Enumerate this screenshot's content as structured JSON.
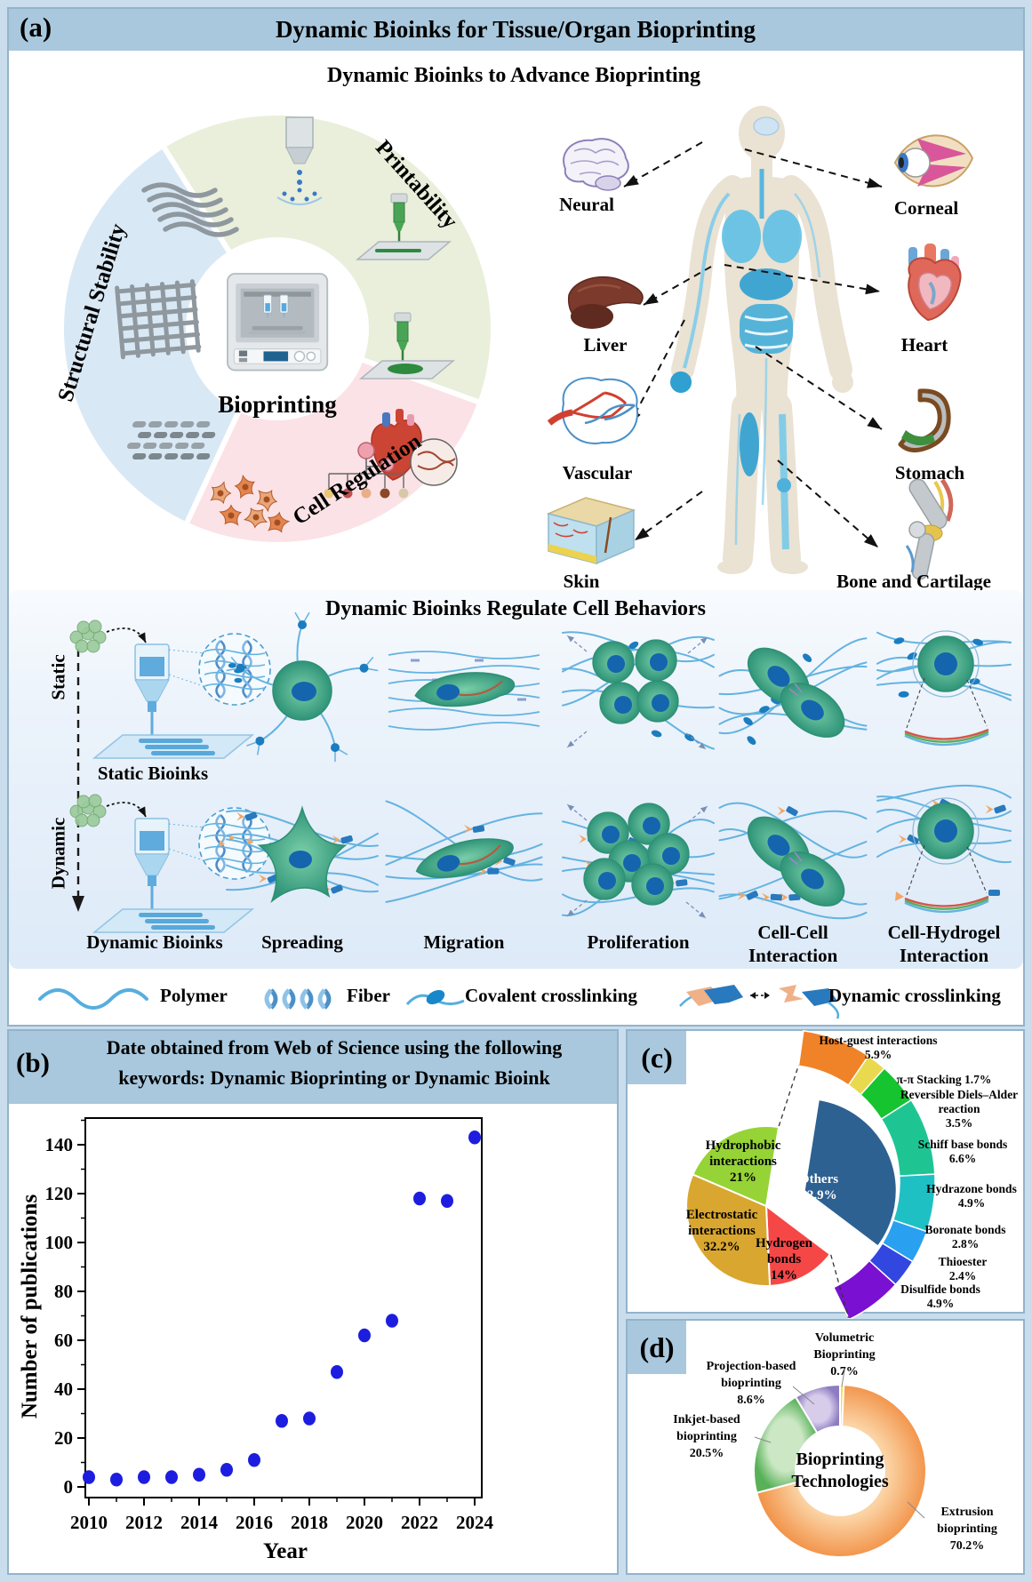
{
  "theme": {
    "page_bg": "#c9dded",
    "panel_bg": "#ffffff",
    "panel_border": "#92b4ca",
    "header_bg": "#a9c8dd",
    "band_bg": "#ddeaf8"
  },
  "panel_a": {
    "tag": "(a)",
    "title": "Dynamic Bioinks for Tissue/Organ Bioprinting",
    "subtitle": "Dynamic Bioinks to Advance Bioprinting",
    "wheel": {
      "center_label": "Bioprinting",
      "sectors": [
        {
          "label": "Printability",
          "color": "#e9efda"
        },
        {
          "label": "Structural Stability",
          "color": "#d9e8f5"
        },
        {
          "label": "Cell Regulation",
          "color": "#fbe2e6"
        }
      ]
    },
    "organs": [
      {
        "label": "Neural"
      },
      {
        "label": "Corneal"
      },
      {
        "label": "Liver"
      },
      {
        "label": "Heart"
      },
      {
        "label": "Vascular"
      },
      {
        "label": "Stomach"
      },
      {
        "label": "Skin"
      },
      {
        "label": "Bone and Cartilage"
      }
    ],
    "behaviors": {
      "title": "Dynamic Bioinks Regulate Cell Behaviors",
      "row_static": "Static",
      "row_dynamic": "Dynamic",
      "static_bioinks": "Static Bioinks",
      "dynamic_bioinks": "Dynamic Bioinks",
      "columns": [
        "Spreading",
        "Migration",
        "Proliferation",
        "Cell-Cell Interaction",
        "Cell-Hydrogel Interaction"
      ]
    },
    "legend": [
      {
        "label": "Polymer"
      },
      {
        "label": "Fiber"
      },
      {
        "label": "Covalent crosslinking"
      },
      {
        "label": "Dynamic crosslinking"
      }
    ]
  },
  "panel_b": {
    "tag": "(b)",
    "title_lines": [
      "Date obtained from Web of Science using the following",
      "keywords: Dynamic Bioprinting or Dynamic Bioink"
    ]
  },
  "panel_c": {
    "tag": "(c)"
  },
  "panel_d": {
    "tag": "(d)"
  },
  "chart_data": [
    {
      "id": "publications-by-year",
      "type": "scatter",
      "title": "Date obtained from Web of Science using the following keywords: Dynamic Bioprinting or Dynamic Bioink",
      "xlabel": "Year",
      "ylabel": "Number of publications",
      "x": [
        2010,
        2011,
        2012,
        2013,
        2014,
        2015,
        2016,
        2017,
        2018,
        2019,
        2020,
        2021,
        2022,
        2023,
        2024
      ],
      "y": [
        4,
        3,
        4,
        4,
        5,
        7,
        11,
        27,
        28,
        47,
        62,
        68,
        118,
        117,
        143
      ],
      "xticks": [
        2010,
        2012,
        2014,
        2016,
        2018,
        2020,
        2022,
        2024
      ],
      "yticks": [
        0,
        20,
        40,
        60,
        80,
        100,
        120,
        140
      ],
      "xlim": [
        2009.5,
        2024.6
      ],
      "ylim": [
        0,
        152
      ],
      "grid": false,
      "legend_position": "none",
      "point_color": "#1d1de0"
    },
    {
      "id": "dynamic-bond-types",
      "type": "pie",
      "style": "pie-with-others-breakout",
      "slices": [
        {
          "label": "Others",
          "pct": "32.9%",
          "value": 32.9,
          "color": "#2d6191"
        },
        {
          "label": "Hydrogen bonds",
          "pct": "14%",
          "value": 14,
          "color": "#f64747"
        },
        {
          "label": "Electrostatic interactions",
          "pct": "32.2%",
          "value": 32.2,
          "color": "#d9a62f"
        },
        {
          "label": "Hydrophobic interactions",
          "pct": "21%",
          "value": 21,
          "color": "#96d336"
        }
      ],
      "others_breakdown": [
        {
          "label": "Host-guest interactions",
          "pct": "5.9%",
          "value": 5.9,
          "color": "#f08228"
        },
        {
          "label": "π-π Stacking",
          "pct": "1.7%",
          "value": 1.7,
          "color": "#e9d94f"
        },
        {
          "label": "Reversible Diels–Alder reaction",
          "pct": "3.5%",
          "value": 3.5,
          "color": "#15c42f"
        },
        {
          "label": "Schiff base bonds",
          "pct": "6.6%",
          "value": 6.6,
          "color": "#1ec593"
        },
        {
          "label": "Hydrazone bonds",
          "pct": "4.9%",
          "value": 4.9,
          "color": "#1fc0c4"
        },
        {
          "label": "Boronate bonds",
          "pct": "2.8%",
          "value": 2.8,
          "color": "#29a0f0"
        },
        {
          "label": "Thioester",
          "pct": "2.4%",
          "value": 2.4,
          "color": "#3246e0"
        },
        {
          "label": "Disulfide bonds",
          "pct": "4.9%",
          "value": 4.9,
          "color": "#7a10d2"
        }
      ]
    },
    {
      "id": "bioprinting-technologies",
      "type": "donut",
      "center_label": "Bioprinting Technologies",
      "slices": [
        {
          "label": "Volumetric Bioprinting",
          "pct": "0.7%",
          "value": 0.7,
          "color": "#f4e04a"
        },
        {
          "label": "Extrusion bioprinting",
          "pct": "70.2%",
          "value": 70.2,
          "color": "#f2954c"
        },
        {
          "label": "Inkjet-based bioprinting",
          "pct": "20.5%",
          "value": 20.5,
          "color": "#58b158"
        },
        {
          "label": "Projection-based bioprinting",
          "pct": "8.6%",
          "value": 8.6,
          "color": "#8d7cc0"
        }
      ]
    }
  ]
}
